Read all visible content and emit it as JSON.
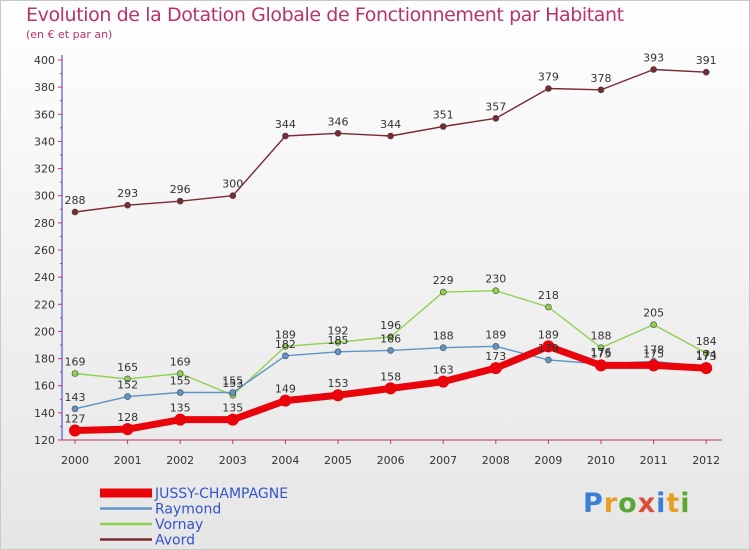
{
  "chart_data": {
    "type": "line",
    "title": "Evolution de la Dotation Globale de Fonctionnement par Habitant",
    "subtitle": "(en € et par an)",
    "xlabel": "",
    "ylabel": "",
    "x": [
      "2000",
      "2001",
      "2002",
      "2003",
      "2004",
      "2005",
      "2006",
      "2007",
      "2008",
      "2009",
      "2010",
      "2011",
      "2012"
    ],
    "yticks": [
      "120",
      "140",
      "160",
      "180",
      "200",
      "220",
      "240",
      "260",
      "280",
      "300",
      "320",
      "340",
      "360",
      "380",
      "400"
    ],
    "ylim": [
      120,
      400
    ],
    "grid": false,
    "legend_position": "bottom-left",
    "series": [
      {
        "name": "JUSSY-CHAMPAGNE",
        "color": "#e8040a",
        "width": "thick",
        "values": [
          127,
          128,
          135,
          135,
          149,
          153,
          158,
          163,
          173,
          189,
          175,
          175,
          173
        ]
      },
      {
        "name": "Raymond",
        "color": "#5e94c8",
        "width": "thin",
        "values": [
          143,
          152,
          155,
          155,
          182,
          185,
          186,
          188,
          189,
          179,
          176,
          178,
          174
        ]
      },
      {
        "name": "Vornay",
        "color": "#8fd14f",
        "width": "thin",
        "values": [
          169,
          165,
          169,
          153,
          189,
          192,
          196,
          229,
          230,
          218,
          188,
          205,
          184
        ]
      },
      {
        "name": "Avord",
        "color": "#7a2a32",
        "width": "thin",
        "values": [
          288,
          293,
          296,
          300,
          344,
          346,
          344,
          351,
          357,
          379,
          378,
          393,
          391
        ]
      }
    ]
  },
  "colors": {
    "title": "#b8336a",
    "axis_x": "#b8336a",
    "axis_y": "#3333cc"
  },
  "logo": {
    "letters": [
      "P",
      "r",
      "o",
      "x",
      "i",
      "t",
      "i"
    ]
  }
}
